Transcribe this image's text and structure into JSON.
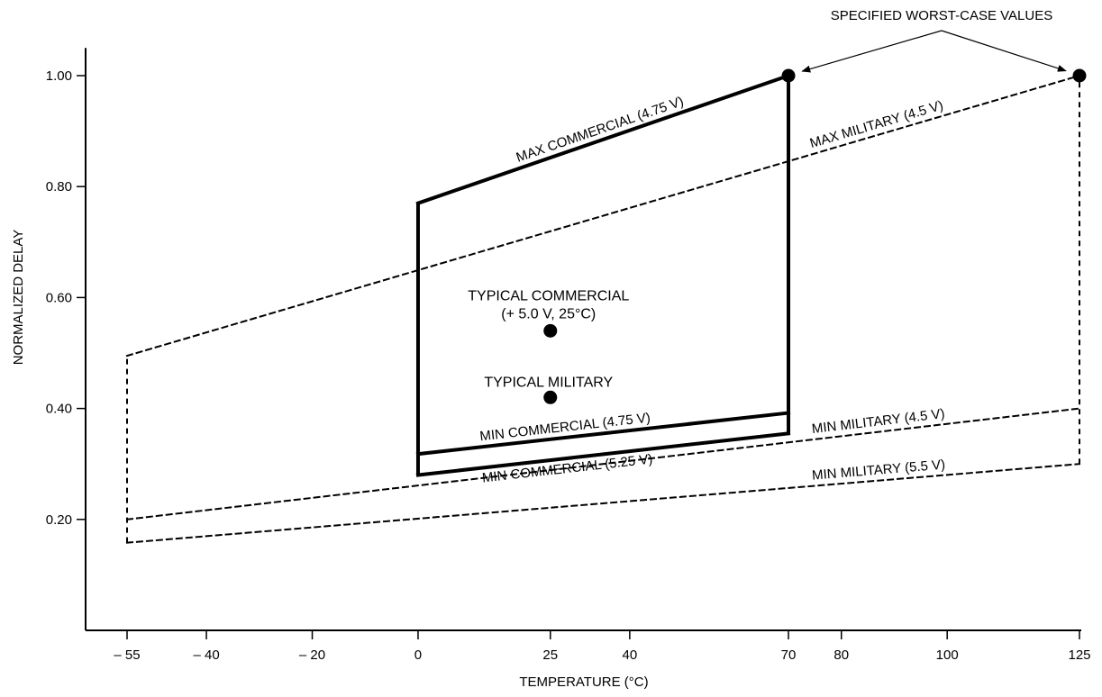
{
  "chart_data": {
    "type": "line",
    "xlabel": "TEMPERATURE (°C)",
    "ylabel": "NORMALIZED DELAY",
    "xlim": [
      -65,
      128
    ],
    "ylim": [
      0.0,
      1.05
    ],
    "x_ticks": [
      -55,
      -40,
      -20,
      0,
      25,
      40,
      70,
      80,
      100,
      125
    ],
    "x_tick_labels": [
      "– 55",
      "– 40",
      "– 20",
      "0",
      "25",
      "40",
      "70",
      "80",
      "100",
      "125"
    ],
    "y_ticks": [
      0.2,
      0.4,
      0.6,
      0.8,
      1.0
    ],
    "y_tick_labels": [
      "0.20",
      "0.40",
      "0.60",
      "0.80",
      "1.00"
    ],
    "series": [
      {
        "name": "MAX COMMERCIAL (4.75 V)",
        "style": "solid",
        "x": [
          0,
          70
        ],
        "y": [
          0.77,
          1.0
        ]
      },
      {
        "name": "MIN COMMERCIAL (4.75 V)",
        "style": "solid",
        "x": [
          0,
          70
        ],
        "y": [
          0.318,
          0.392
        ]
      },
      {
        "name": "MIN COMMERCIAL (5.25 V)",
        "style": "solid",
        "x": [
          0,
          70
        ],
        "y": [
          0.28,
          0.355
        ]
      },
      {
        "name": "MAX MILITARY (4.5 V)",
        "style": "dashed",
        "x": [
          -55,
          125
        ],
        "y": [
          0.495,
          1.0
        ]
      },
      {
        "name": "MIN MILITARY (4.5 V)",
        "style": "dashed",
        "x": [
          -55,
          125
        ],
        "y": [
          0.2,
          0.4
        ]
      },
      {
        "name": "MIN MILITARY (5.5 V)",
        "style": "dashed",
        "x": [
          -55,
          125
        ],
        "y": [
          0.158,
          0.3
        ]
      }
    ],
    "bounds": [
      {
        "style": "solid",
        "x": [
          0,
          0
        ],
        "y": [
          0.28,
          0.77
        ]
      },
      {
        "style": "solid",
        "x": [
          70,
          70
        ],
        "y": [
          0.355,
          1.0
        ]
      },
      {
        "style": "dashed",
        "x": [
          -55,
          -55
        ],
        "y": [
          0.158,
          0.495
        ]
      },
      {
        "style": "dashed",
        "x": [
          125,
          125
        ],
        "y": [
          0.3,
          1.0
        ]
      }
    ],
    "points": [
      {
        "label_lines": [
          "TYPICAL COMMERCIAL",
          "(+ 5.0 V, 25°C)"
        ],
        "x": 25,
        "y": 0.54
      },
      {
        "label_lines": [
          "TYPICAL MILITARY"
        ],
        "x": 25,
        "y": 0.42
      },
      {
        "label_lines": [],
        "x": 70,
        "y": 1.0
      },
      {
        "label_lines": [],
        "x": 125,
        "y": 1.0
      }
    ],
    "annotation": {
      "text": "SPECIFIED WORST-CASE VALUES"
    }
  }
}
